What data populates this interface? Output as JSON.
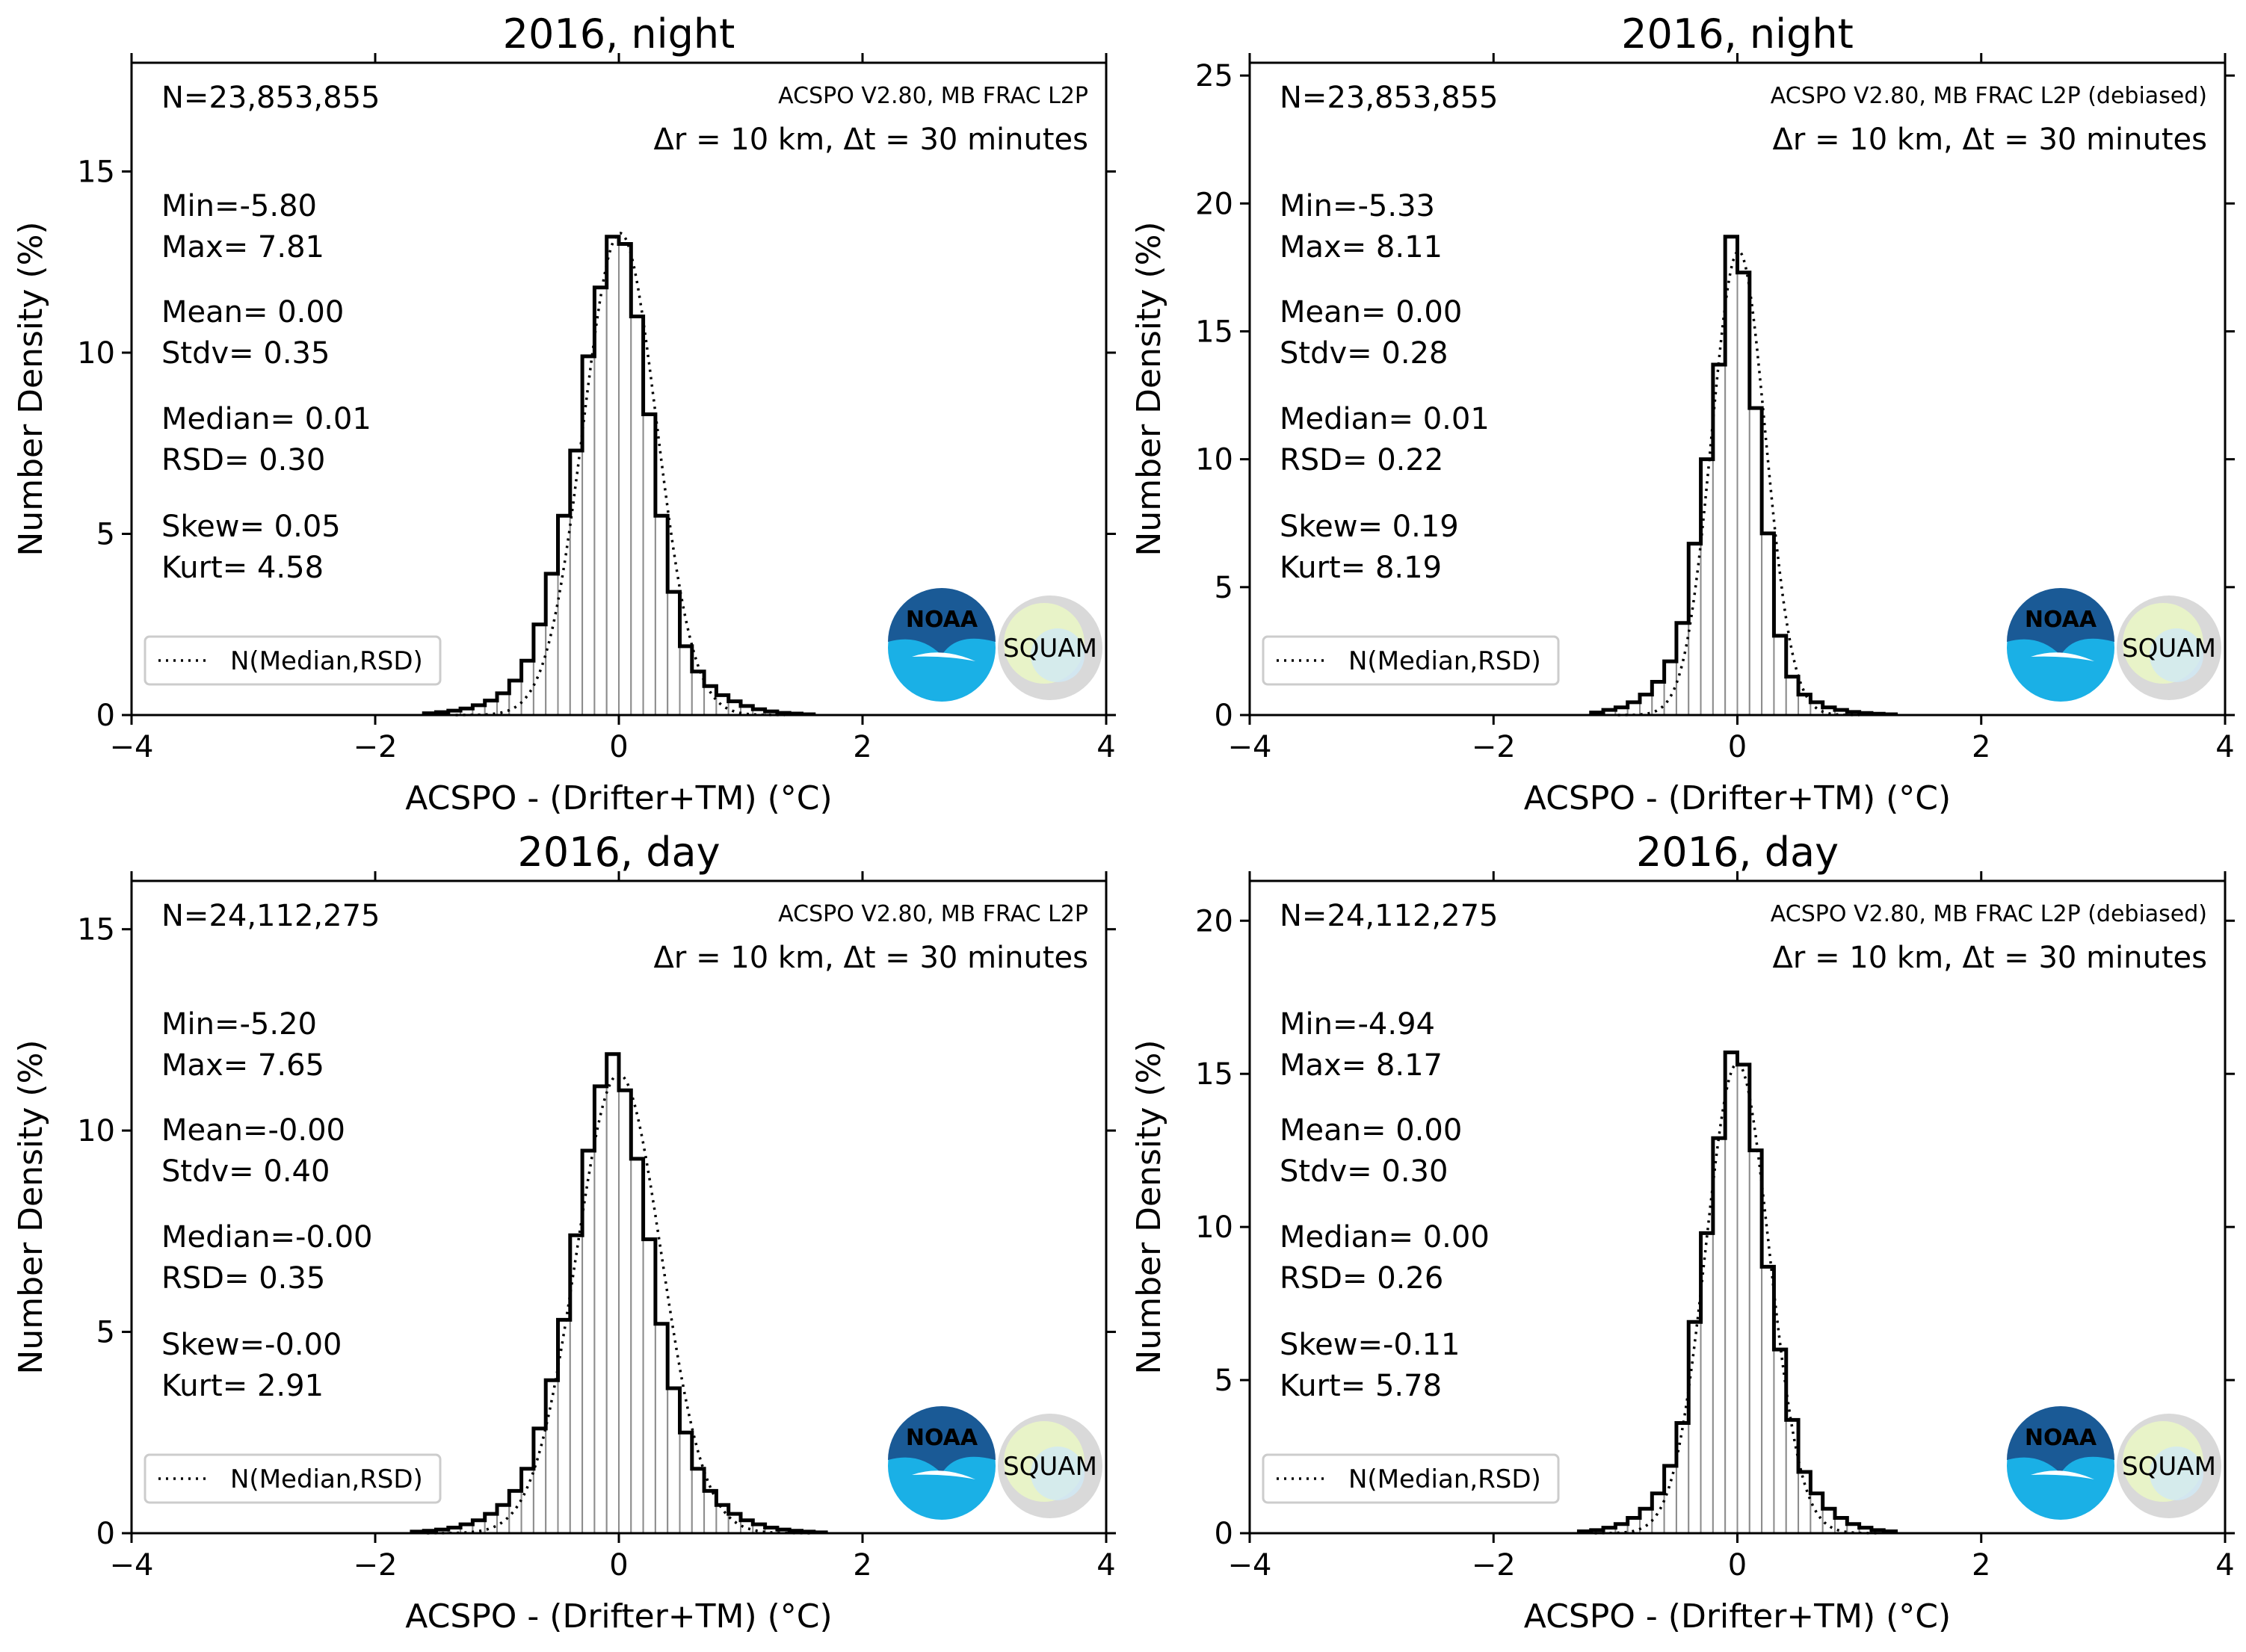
{
  "figure": {
    "panels": [
      {
        "title": "2016, night",
        "xlabel": "ACSPO - (Drifter+TM) (°C)",
        "ylabel": "Number Density (%)",
        "info_line1": "ACSPO V2.80, MB FRAC L2P",
        "info_line2": "Δr = 10 km, Δt = 30 minutes",
        "stats": [
          "N=23,853,855",
          "Min=-5.80",
          "Max= 7.81",
          "Mean= 0.00",
          "Stdv= 0.35",
          "Median= 0.01",
          "RSD= 0.30",
          "Skew= 0.05",
          "Kurt= 4.58"
        ],
        "legend_label": "N(Median,RSD)",
        "logo_text": "NOAA",
        "logo2_text": "SQUAM"
      },
      {
        "title": "2016, night",
        "xlabel": "ACSPO - (Drifter+TM) (°C)",
        "ylabel": "Number Density (%)",
        "info_line1": "ACSPO V2.80, MB FRAC L2P (debiased)",
        "info_line2": "Δr = 10 km, Δt = 30 minutes",
        "stats": [
          "N=23,853,855",
          "Min=-5.33",
          "Max= 8.11",
          "Mean= 0.00",
          "Stdv= 0.28",
          "Median= 0.01",
          "RSD= 0.22",
          "Skew= 0.19",
          "Kurt= 8.19"
        ],
        "legend_label": "N(Median,RSD)",
        "logo_text": "NOAA",
        "logo2_text": "SQUAM"
      },
      {
        "title": "2016, day",
        "xlabel": "ACSPO - (Drifter+TM) (°C)",
        "ylabel": "Number Density (%)",
        "info_line1": "ACSPO V2.80, MB FRAC L2P",
        "info_line2": "Δr = 10 km, Δt = 30 minutes",
        "stats": [
          "N=24,112,275",
          "Min=-5.20",
          "Max= 7.65",
          "Mean=-0.00",
          "Stdv= 0.40",
          "Median=-0.00",
          "RSD= 0.35",
          "Skew=-0.00",
          "Kurt= 2.91"
        ],
        "legend_label": "N(Median,RSD)",
        "logo_text": "NOAA",
        "logo2_text": "SQUAM"
      },
      {
        "title": "2016, day",
        "xlabel": "ACSPO - (Drifter+TM) (°C)",
        "ylabel": "Number Density (%)",
        "info_line1": "ACSPO V2.80, MB FRAC L2P (debiased)",
        "info_line2": "Δr = 10 km, Δt = 30 minutes",
        "stats": [
          "N=24,112,275",
          "Min=-4.94",
          "Max= 8.17",
          "Mean= 0.00",
          "Stdv= 0.30",
          "Median= 0.00",
          "RSD= 0.26",
          "Skew=-0.11",
          "Kurt= 5.78"
        ],
        "legend_label": "N(Median,RSD)",
        "logo_text": "NOAA",
        "logo2_text": "SQUAM"
      }
    ]
  },
  "colors": {
    "histogram_edge": "#000000",
    "histogram_fill": "#ffffff",
    "bar_outline": "#8c8c8c",
    "normal_curve": "#000000",
    "noaa_blue": "#1ab0e6",
    "noaa_dark": "#1a5a96"
  },
  "chart_data": [
    {
      "type": "histogram",
      "title": "2016, night",
      "xlabel": "ACSPO - (Drifter+TM) (°C)",
      "ylabel": "Number Density (%)",
      "xlim": [
        -4,
        4
      ],
      "ylim": [
        0,
        18
      ],
      "xticks": [
        -4,
        -2,
        0,
        2,
        4
      ],
      "yticks": [
        0,
        5,
        10,
        15
      ],
      "legend": {
        "location": "lower left",
        "entries": [
          "N(Median,RSD)"
        ]
      },
      "normal_fit": {
        "median": 0.01,
        "rsd": 0.3
      },
      "bin_width": 0.1,
      "bin_centers": [
        -1.55,
        -1.45,
        -1.35,
        -1.25,
        -1.15,
        -1.05,
        -0.95,
        -0.85,
        -0.75,
        -0.65,
        -0.55,
        -0.45,
        -0.35,
        -0.25,
        -0.15,
        -0.05,
        0.05,
        0.15,
        0.25,
        0.35,
        0.45,
        0.55,
        0.65,
        0.75,
        0.85,
        0.95,
        1.05,
        1.15,
        1.25,
        1.35,
        1.45,
        1.55
      ],
      "values": [
        0.05,
        0.08,
        0.12,
        0.18,
        0.27,
        0.4,
        0.6,
        0.95,
        1.5,
        2.5,
        3.9,
        5.5,
        7.3,
        9.9,
        11.8,
        13.2,
        13.0,
        11.0,
        8.3,
        5.5,
        3.4,
        1.9,
        1.2,
        0.8,
        0.55,
        0.38,
        0.25,
        0.16,
        0.1,
        0.06,
        0.04,
        0.02
      ]
    },
    {
      "type": "histogram",
      "title": "2016, night",
      "xlabel": "ACSPO - (Drifter+TM) (°C)",
      "ylabel": "Number Density (%)",
      "xlim": [
        -4,
        4
      ],
      "ylim": [
        0,
        25.5
      ],
      "xticks": [
        -4,
        -2,
        0,
        2,
        4
      ],
      "yticks": [
        0,
        5,
        10,
        15,
        20,
        25
      ],
      "legend": {
        "location": "lower left",
        "entries": [
          "N(Median,RSD)"
        ]
      },
      "normal_fit": {
        "median": 0.01,
        "rsd": 0.22
      },
      "bin_width": 0.1,
      "bin_centers": [
        -1.15,
        -1.05,
        -0.95,
        -0.85,
        -0.75,
        -0.65,
        -0.55,
        -0.45,
        -0.35,
        -0.25,
        -0.15,
        -0.05,
        0.05,
        0.15,
        0.25,
        0.35,
        0.45,
        0.55,
        0.65,
        0.75,
        0.85,
        0.95,
        1.05,
        1.15,
        1.25
      ],
      "values": [
        0.1,
        0.2,
        0.3,
        0.5,
        0.8,
        1.3,
        2.1,
        3.6,
        6.7,
        10.0,
        13.7,
        18.7,
        17.3,
        12.0,
        7.1,
        3.1,
        1.5,
        0.8,
        0.5,
        0.3,
        0.2,
        0.12,
        0.08,
        0.05,
        0.03
      ]
    },
    {
      "type": "histogram",
      "title": "2016, day",
      "xlabel": "ACSPO - (Drifter+TM) (°C)",
      "ylabel": "Number Density (%)",
      "xlim": [
        -4,
        4
      ],
      "ylim": [
        0,
        16.2
      ],
      "xticks": [
        -4,
        -2,
        0,
        2,
        4
      ],
      "yticks": [
        0,
        5,
        10,
        15
      ],
      "legend": {
        "location": "lower left",
        "entries": [
          "N(Median,RSD)"
        ]
      },
      "normal_fit": {
        "median": -0.0,
        "rsd": 0.35
      },
      "bin_width": 0.1,
      "bin_centers": [
        -1.65,
        -1.55,
        -1.45,
        -1.35,
        -1.25,
        -1.15,
        -1.05,
        -0.95,
        -0.85,
        -0.75,
        -0.65,
        -0.55,
        -0.45,
        -0.35,
        -0.25,
        -0.15,
        -0.05,
        0.05,
        0.15,
        0.25,
        0.35,
        0.45,
        0.55,
        0.65,
        0.75,
        0.85,
        0.95,
        1.05,
        1.15,
        1.25,
        1.35,
        1.45,
        1.55,
        1.65
      ],
      "values": [
        0.04,
        0.06,
        0.09,
        0.14,
        0.22,
        0.32,
        0.48,
        0.7,
        1.05,
        1.6,
        2.6,
        3.8,
        5.3,
        7.4,
        9.5,
        11.1,
        11.9,
        11.0,
        9.3,
        7.3,
        5.2,
        3.6,
        2.5,
        1.6,
        1.05,
        0.7,
        0.48,
        0.32,
        0.22,
        0.14,
        0.09,
        0.06,
        0.04,
        0.02
      ]
    },
    {
      "type": "histogram",
      "title": "2016, day",
      "xlabel": "ACSPO - (Drifter+TM) (°C)",
      "ylabel": "Number Density (%)",
      "xlim": [
        -4,
        4
      ],
      "ylim": [
        0,
        21.3
      ],
      "xticks": [
        -4,
        -2,
        0,
        2,
        4
      ],
      "yticks": [
        0,
        5,
        10,
        15,
        20
      ],
      "legend": {
        "location": "lower left",
        "entries": [
          "N(Median,RSD)"
        ]
      },
      "normal_fit": {
        "median": 0.0,
        "rsd": 0.26
      },
      "bin_width": 0.1,
      "bin_centers": [
        -1.25,
        -1.15,
        -1.05,
        -0.95,
        -0.85,
        -0.75,
        -0.65,
        -0.55,
        -0.45,
        -0.35,
        -0.25,
        -0.15,
        -0.05,
        0.05,
        0.15,
        0.25,
        0.35,
        0.45,
        0.55,
        0.65,
        0.75,
        0.85,
        0.95,
        1.05,
        1.15,
        1.25
      ],
      "values": [
        0.06,
        0.1,
        0.18,
        0.3,
        0.5,
        0.8,
        1.3,
        2.2,
        3.6,
        6.9,
        9.8,
        12.9,
        15.7,
        15.3,
        12.5,
        8.7,
        6.0,
        3.7,
        2.0,
        1.3,
        0.8,
        0.5,
        0.3,
        0.18,
        0.1,
        0.06
      ]
    }
  ]
}
